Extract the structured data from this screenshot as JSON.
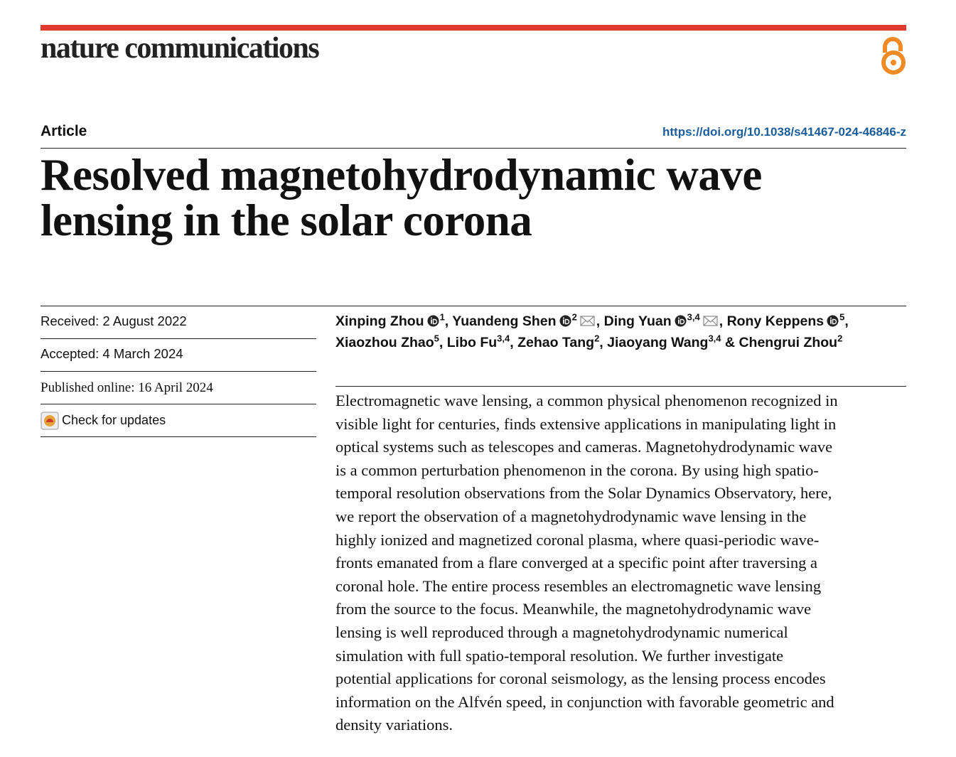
{
  "journal": "nature communications",
  "article_type": "Article",
  "doi": "https://doi.org/10.1038/s41467-024-46846-z",
  "title_lines": [
    "Resolved magnetohydrodynamic wave",
    "lensing in the solar corona"
  ],
  "dates": {
    "received": "Received: 2 August 2022",
    "accepted": "Accepted: 4 March 2024",
    "published": "Published online: 16 April 2024"
  },
  "check_updates": "Check for updates",
  "author_lines": [
    [
      {
        "name": "Xinping Zhou",
        "orcid": true,
        "sup": "1",
        "after": ", "
      },
      {
        "name": "Yuandeng Shen",
        "orcid": true,
        "sup": "2",
        "email": true,
        "after": ", "
      },
      {
        "name": "Ding Yuan",
        "orcid": true,
        "sup": "3,4",
        "email": true,
        "after": ", "
      },
      {
        "name": "Rony Keppens",
        "orcid": true,
        "sup": "5",
        "after": ","
      }
    ],
    [
      {
        "name": "Xiaozhou Zhao",
        "sup": "5",
        "after": ", "
      },
      {
        "name": "Libo Fu",
        "sup": "3,4",
        "after": ", "
      },
      {
        "name": "Zehao Tang",
        "sup": "2",
        "after": ", "
      },
      {
        "name": "Jiaoyang Wang",
        "sup": "3,4",
        "after": " & "
      },
      {
        "name": "Chengrui Zhou",
        "sup": "2"
      }
    ]
  ],
  "abstract_lines": [
    "Electromagnetic wave lensing, a common physical phenomenon recognized in",
    "visible light for centuries, finds extensive applications in manipulating light in",
    "optical systems such as telescopes and cameras. Magnetohydrodynamic wave",
    "is a common perturbation phenomenon in the corona. By using high spatio-",
    "temporal resolution observations from the Solar Dynamics Observatory, here,",
    "we report the observation of a magnetohydrodynamic wave lensing in the",
    "highly ionized and magnetized coronal plasma, where quasi-periodic wave-",
    "fronts emanated from a flare converged at a specific point after traversing a",
    "coronal hole. The entire process resembles an electromagnetic wave lensing",
    "from the source to the focus. Meanwhile, the magnetohydrodynamic wave",
    "lensing is well reproduced through a magnetohydrodynamic numerical",
    "simulation with full spatio-temporal resolution. We further investigate",
    "potential applications for coronal seismology, as the lensing process encodes",
    "information on the Alfvén speed, in conjunction with favorable geometric and",
    "density variations."
  ]
}
